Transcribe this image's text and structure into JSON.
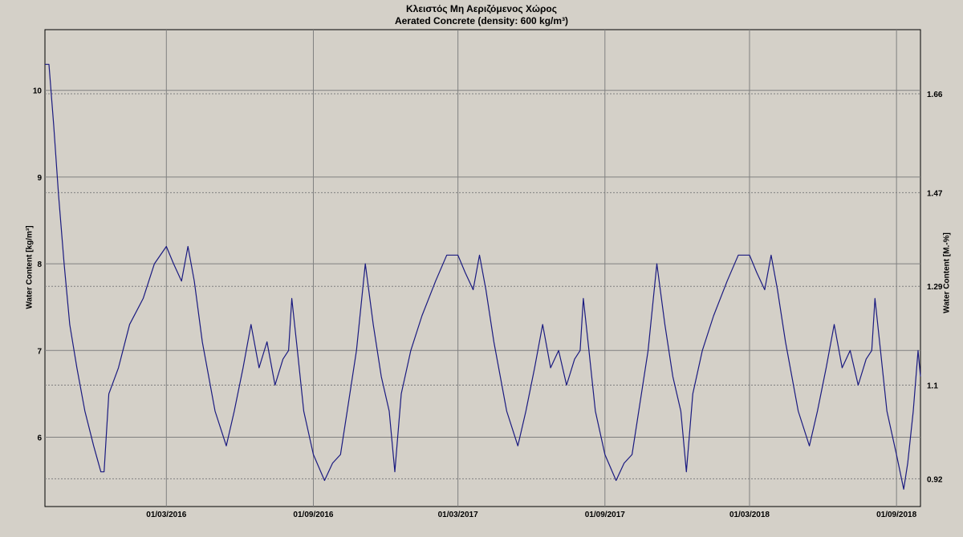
{
  "chart_data": {
    "type": "line",
    "title": "Κλειστός Μη Αεριζόμενος Χώρος",
    "subtitle": "Aerated Concrete (density: 600 kg/m³)",
    "ylabel_left": "Water Content [kg/m³]",
    "ylabel_right": "Water Content [M.-%]",
    "x_tick_labels": [
      "01/03/2016",
      "01/09/2016",
      "01/03/2017",
      "01/09/2017",
      "01/03/2018",
      "01/09/2018"
    ],
    "x_ticks": [
      "2016-03-01",
      "2016-09-01",
      "2017-03-01",
      "2017-09-01",
      "2018-03-01",
      "2018-09-01"
    ],
    "x_range": [
      "2015-10-01",
      "2018-10-01"
    ],
    "y_left_ticks": [
      6,
      7,
      8,
      9,
      10
    ],
    "y_left_range": [
      5.2,
      10.7
    ],
    "y_right_ticks": [
      0.92,
      1.1,
      1.29,
      1.47,
      1.66
    ],
    "grid": true,
    "color": "#1a1a80",
    "series": [
      {
        "values": [
          [
            "2015-10-01",
            10.3
          ],
          [
            "2015-10-06",
            10.3
          ],
          [
            "2015-10-12",
            9.6
          ],
          [
            "2015-10-18",
            8.8
          ],
          [
            "2015-10-25",
            8.0
          ],
          [
            "2015-11-01",
            7.3
          ],
          [
            "2015-11-10",
            6.8
          ],
          [
            "2015-11-20",
            6.3
          ],
          [
            "2015-12-01",
            5.9
          ],
          [
            "2015-12-10",
            5.6
          ],
          [
            "2015-12-14",
            5.6
          ],
          [
            "2015-12-20",
            6.5
          ],
          [
            "2016-01-01",
            6.8
          ],
          [
            "2016-01-15",
            7.3
          ],
          [
            "2016-02-01",
            7.6
          ],
          [
            "2016-02-15",
            8.0
          ],
          [
            "2016-03-01",
            8.2
          ],
          [
            "2016-03-10",
            8.0
          ],
          [
            "2016-03-20",
            7.8
          ],
          [
            "2016-03-28",
            8.2
          ],
          [
            "2016-04-05",
            7.8
          ],
          [
            "2016-04-15",
            7.1
          ],
          [
            "2016-05-01",
            6.3
          ],
          [
            "2016-05-15",
            5.9
          ],
          [
            "2016-05-25",
            6.3
          ],
          [
            "2016-06-05",
            6.8
          ],
          [
            "2016-06-15",
            7.3
          ],
          [
            "2016-06-25",
            6.8
          ],
          [
            "2016-07-05",
            7.1
          ],
          [
            "2016-07-15",
            6.6
          ],
          [
            "2016-07-25",
            6.9
          ],
          [
            "2016-08-01",
            7.0
          ],
          [
            "2016-08-05",
            7.6
          ],
          [
            "2016-08-12",
            7.0
          ],
          [
            "2016-08-20",
            6.3
          ],
          [
            "2016-09-01",
            5.8
          ],
          [
            "2016-09-15",
            5.5
          ],
          [
            "2016-09-25",
            5.7
          ],
          [
            "2016-10-05",
            5.8
          ],
          [
            "2016-10-15",
            6.4
          ],
          [
            "2016-10-25",
            7.0
          ],
          [
            "2016-11-05",
            8.0
          ],
          [
            "2016-11-15",
            7.3
          ],
          [
            "2016-11-25",
            6.7
          ],
          [
            "2016-12-05",
            6.3
          ],
          [
            "2016-12-12",
            5.6
          ],
          [
            "2016-12-20",
            6.5
          ],
          [
            "2017-01-01",
            7.0
          ],
          [
            "2017-01-15",
            7.4
          ],
          [
            "2017-02-01",
            7.8
          ],
          [
            "2017-02-15",
            8.1
          ],
          [
            "2017-03-01",
            8.1
          ],
          [
            "2017-03-10",
            7.9
          ],
          [
            "2017-03-20",
            7.7
          ],
          [
            "2017-03-28",
            8.1
          ],
          [
            "2017-04-05",
            7.7
          ],
          [
            "2017-04-15",
            7.1
          ],
          [
            "2017-05-01",
            6.3
          ],
          [
            "2017-05-15",
            5.9
          ],
          [
            "2017-05-25",
            6.3
          ],
          [
            "2017-06-05",
            6.8
          ],
          [
            "2017-06-15",
            7.3
          ],
          [
            "2017-06-25",
            6.8
          ],
          [
            "2017-07-05",
            7.0
          ],
          [
            "2017-07-15",
            6.6
          ],
          [
            "2017-07-25",
            6.9
          ],
          [
            "2017-08-01",
            7.0
          ],
          [
            "2017-08-05",
            7.6
          ],
          [
            "2017-08-12",
            7.0
          ],
          [
            "2017-08-20",
            6.3
          ],
          [
            "2017-09-01",
            5.8
          ],
          [
            "2017-09-15",
            5.5
          ],
          [
            "2017-09-25",
            5.7
          ],
          [
            "2017-10-05",
            5.8
          ],
          [
            "2017-10-15",
            6.4
          ],
          [
            "2017-10-25",
            7.0
          ],
          [
            "2017-11-05",
            8.0
          ],
          [
            "2017-11-15",
            7.3
          ],
          [
            "2017-11-25",
            6.7
          ],
          [
            "2017-12-05",
            6.3
          ],
          [
            "2017-12-12",
            5.6
          ],
          [
            "2017-12-20",
            6.5
          ],
          [
            "2018-01-01",
            7.0
          ],
          [
            "2018-01-15",
            7.4
          ],
          [
            "2018-02-01",
            7.8
          ],
          [
            "2018-02-15",
            8.1
          ],
          [
            "2018-03-01",
            8.1
          ],
          [
            "2018-03-10",
            7.9
          ],
          [
            "2018-03-20",
            7.7
          ],
          [
            "2018-03-28",
            8.1
          ],
          [
            "2018-04-05",
            7.7
          ],
          [
            "2018-04-15",
            7.1
          ],
          [
            "2018-05-01",
            6.3
          ],
          [
            "2018-05-15",
            5.9
          ],
          [
            "2018-05-25",
            6.3
          ],
          [
            "2018-06-05",
            6.8
          ],
          [
            "2018-06-15",
            7.3
          ],
          [
            "2018-06-25",
            6.8
          ],
          [
            "2018-07-05",
            7.0
          ],
          [
            "2018-07-15",
            6.6
          ],
          [
            "2018-07-25",
            6.9
          ],
          [
            "2018-08-01",
            7.0
          ],
          [
            "2018-08-05",
            7.6
          ],
          [
            "2018-08-12",
            7.0
          ],
          [
            "2018-08-20",
            6.3
          ],
          [
            "2018-09-01",
            5.8
          ],
          [
            "2018-09-10",
            5.4
          ],
          [
            "2018-09-15",
            5.7
          ],
          [
            "2018-09-22",
            6.3
          ],
          [
            "2018-09-28",
            7.0
          ],
          [
            "2018-10-01",
            6.7
          ]
        ]
      }
    ]
  }
}
